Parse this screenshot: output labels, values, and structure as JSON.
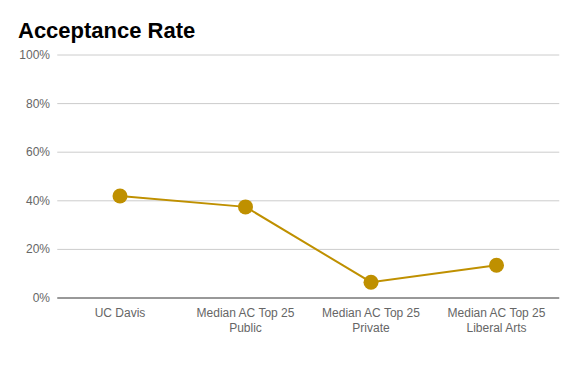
{
  "chart_data": {
    "type": "line",
    "title": "Acceptance Rate",
    "categories": [
      "UC Davis",
      "Median AC Top 25 Public",
      "Median AC Top 25 Private",
      "Median AC Top 25 Liberal Arts"
    ],
    "values": [
      42,
      37.5,
      6.5,
      13.5
    ],
    "color": "#bf9000",
    "marker": "circle",
    "line_style": "solid",
    "ylim": [
      0,
      100
    ],
    "yticks": [
      {
        "value": 0,
        "label": "0%"
      },
      {
        "value": 20,
        "label": "20%"
      },
      {
        "value": 40,
        "label": "40%"
      },
      {
        "value": 60,
        "label": "60%"
      },
      {
        "value": 80,
        "label": "80%"
      },
      {
        "value": 100,
        "label": "100%"
      }
    ],
    "grid": true
  }
}
